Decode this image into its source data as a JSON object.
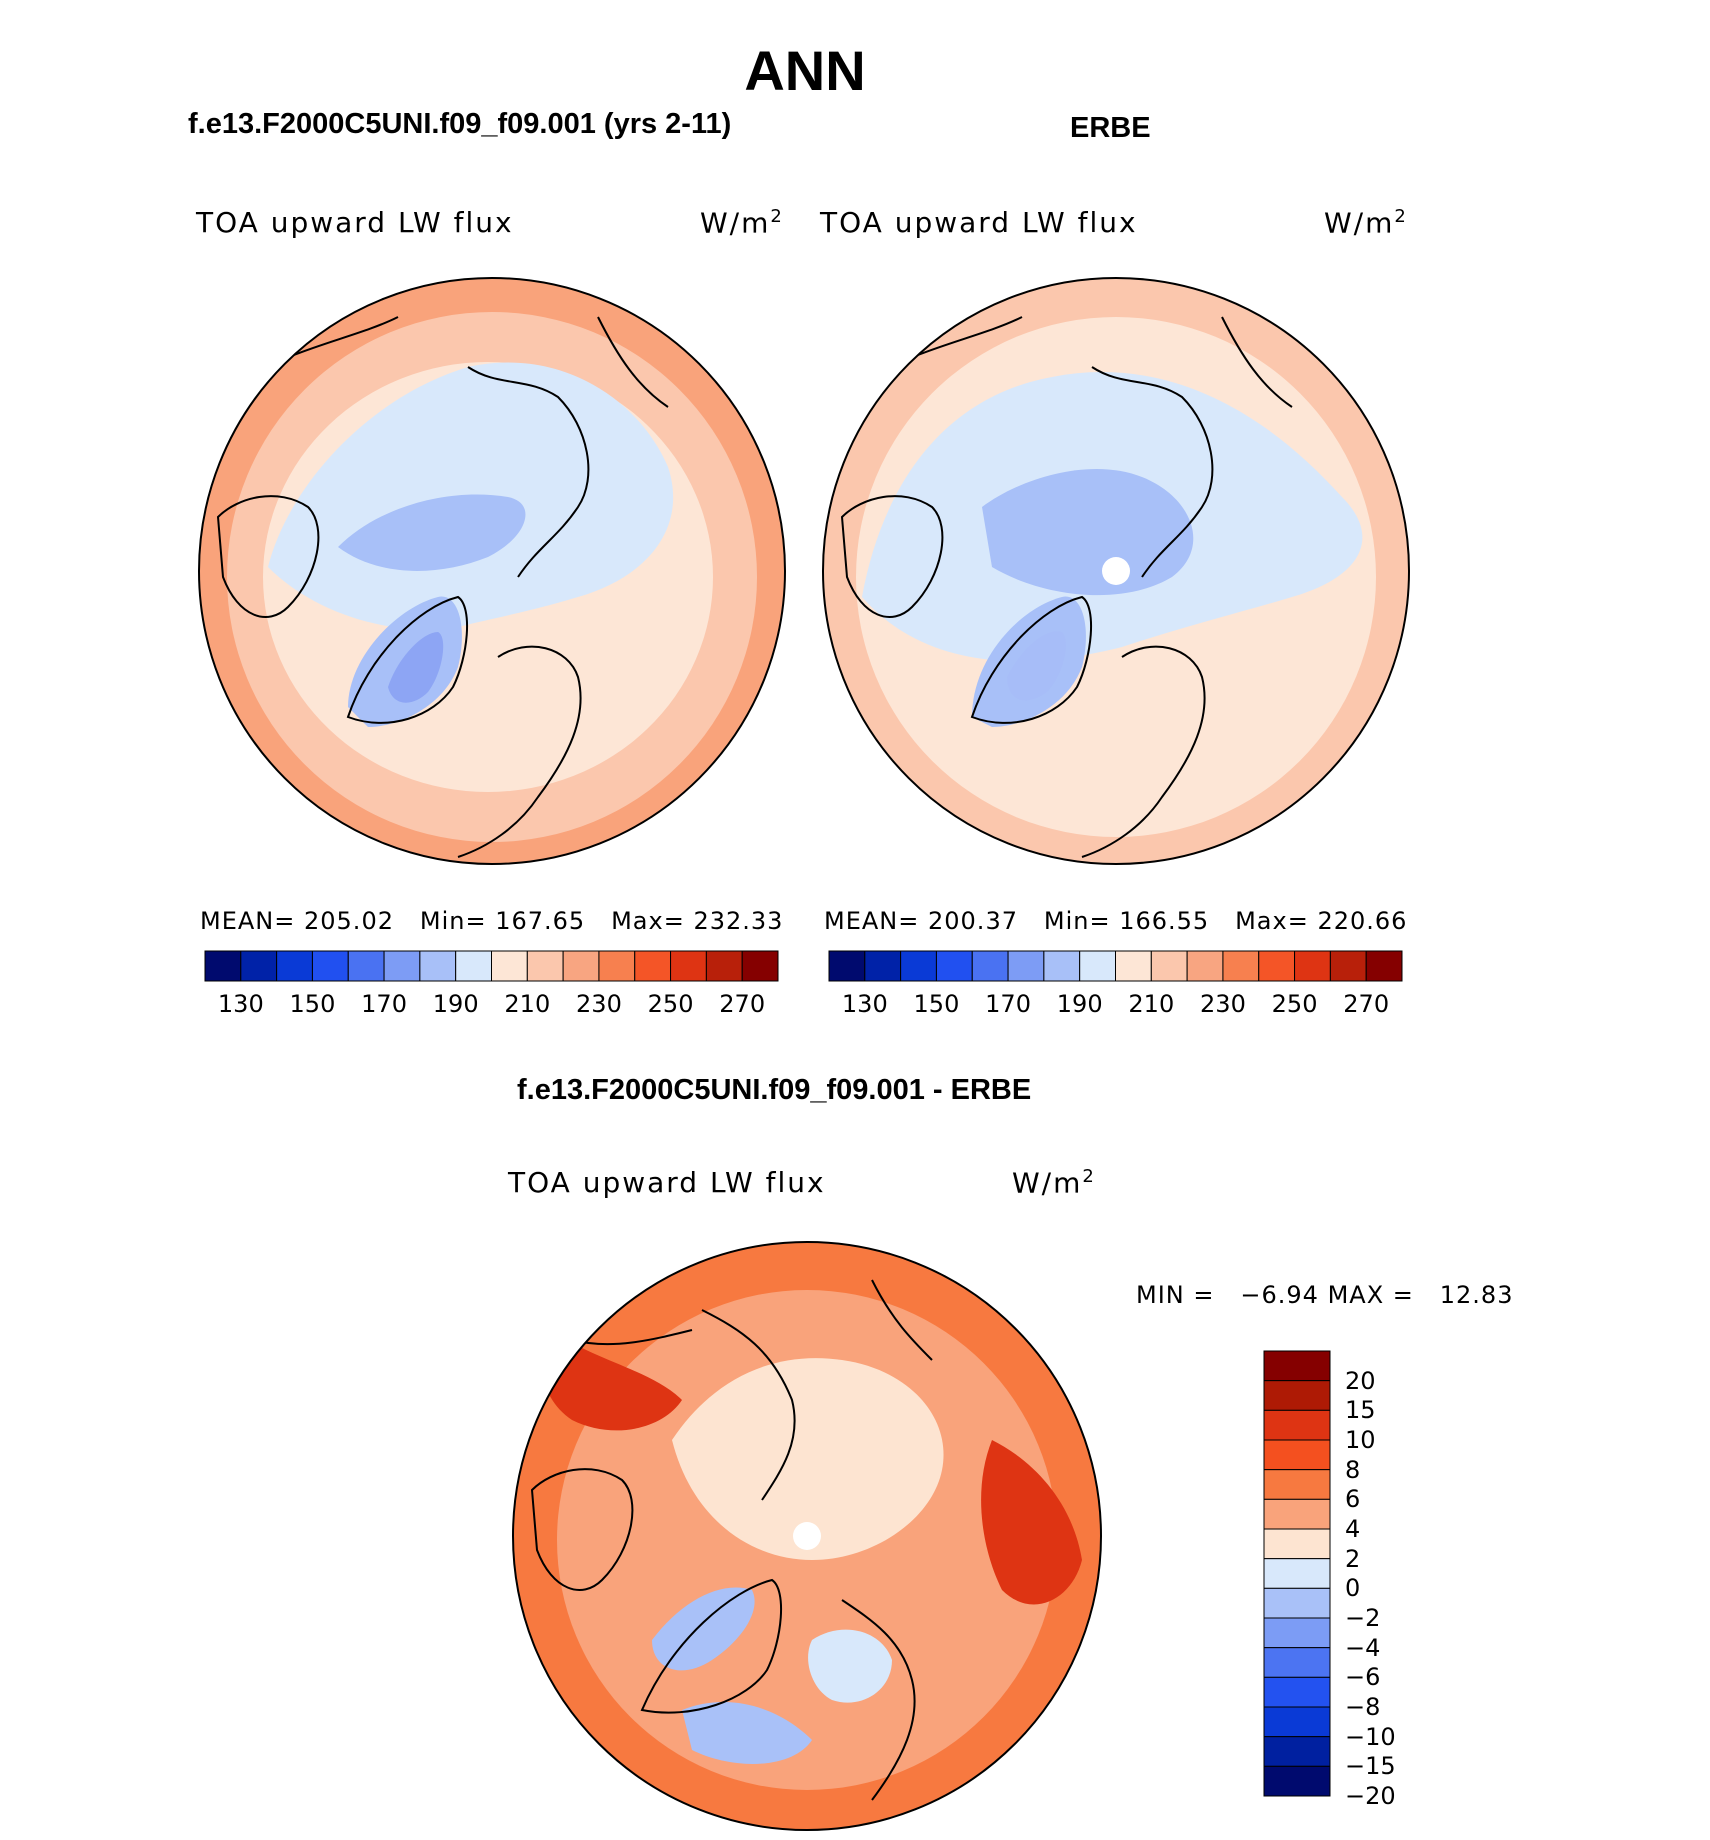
{
  "figure": {
    "season": "ANN",
    "panels": [
      {
        "id": "model",
        "dataset_title": "f.e13.F2000C5UNI.f09_f09.001 (yrs 2-11)",
        "variable": "TOA upward LW flux",
        "units": "W/m",
        "units_exp": "2",
        "mean_label": "MEAN=",
        "mean": "205.02",
        "min_label": "Min=",
        "min": "167.65",
        "max_label": "Max=",
        "max": "232.33",
        "inner_color": "#8da5f4"
      },
      {
        "id": "obs",
        "dataset_title": "ERBE",
        "variable": "TOA upward LW flux",
        "units": "W/m",
        "units_exp": "2",
        "mean_label": "MEAN=",
        "mean": "200.37",
        "min_label": "Min=",
        "min": "166.55",
        "max_label": "Max=",
        "max": "220.66",
        "inner_color": "#a7bdf8"
      }
    ],
    "abs_colorbar": {
      "colors": [
        "#000a6e",
        "#0022a8",
        "#0a3ad6",
        "#2150f0",
        "#4a72f2",
        "#7d9cf5",
        "#a8c0f8",
        "#d8e8fb",
        "#fde6d6",
        "#fbc7ad",
        "#f8a581",
        "#f7804f",
        "#f45527",
        "#de3413",
        "#b8200a",
        "#850000"
      ],
      "tick_labels": [
        "130",
        "150",
        "170",
        "190",
        "210",
        "230",
        "250",
        "270"
      ]
    },
    "diff": {
      "title": "f.e13.F2000C5UNI.f09_f09.001 - ERBE",
      "variable": "TOA upward LW flux",
      "units": "W/m",
      "units_exp": "2",
      "min_label": "MIN =",
      "min": "−6.94",
      "max_label": "MAX =",
      "max": "12.83",
      "colorbar": {
        "colors": [
          "#850000",
          "#ae1a05",
          "#de3413",
          "#f4501f",
          "#f77940",
          "#f9a37b",
          "#fde4d1",
          "#d8e8fb",
          "#a9c1f8",
          "#7c9cf5",
          "#4c74f2",
          "#2352f0",
          "#0a3ad6",
          "#0020a0",
          "#000a6e"
        ],
        "tick_labels": [
          "20",
          "15",
          "10",
          "8",
          "6",
          "4",
          "2",
          "0",
          "−2",
          "−4",
          "−6",
          "−8",
          "−10",
          "−15",
          "−20"
        ]
      }
    }
  }
}
